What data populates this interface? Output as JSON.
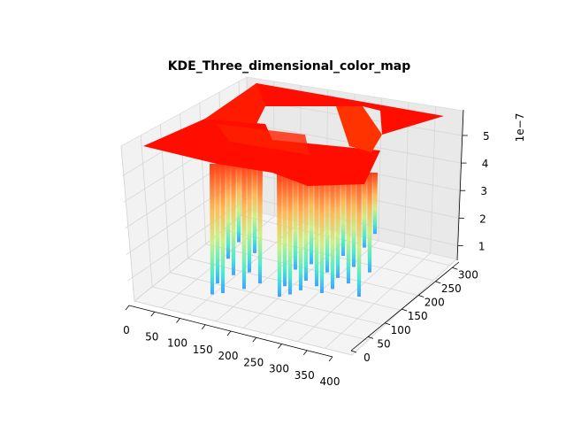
{
  "chart_data": {
    "type": "surface3d",
    "title": "KDE_Three_dimensional_color_map",
    "xlabel": "",
    "ylabel": "",
    "zlabel": "",
    "colormap": "rainbow",
    "x_ticks": [
      "0",
      "50",
      "100",
      "150",
      "200",
      "250",
      "300",
      "350",
      "400"
    ],
    "y_ticks": [
      "0",
      "50",
      "100",
      "150",
      "200",
      "250",
      "300"
    ],
    "z_ticks": [
      "1",
      "2",
      "3",
      "4",
      "5"
    ],
    "z_offset_label": "1e−7",
    "xlim": [
      0,
      400
    ],
    "ylim": [
      0,
      320
    ],
    "zlim": [
      0.5,
      5.9
    ],
    "plateau_z": 5.3,
    "grid": true,
    "description_values": {
      "surface_min_z": 0.75,
      "surface_max_z": 5.3
    }
  }
}
